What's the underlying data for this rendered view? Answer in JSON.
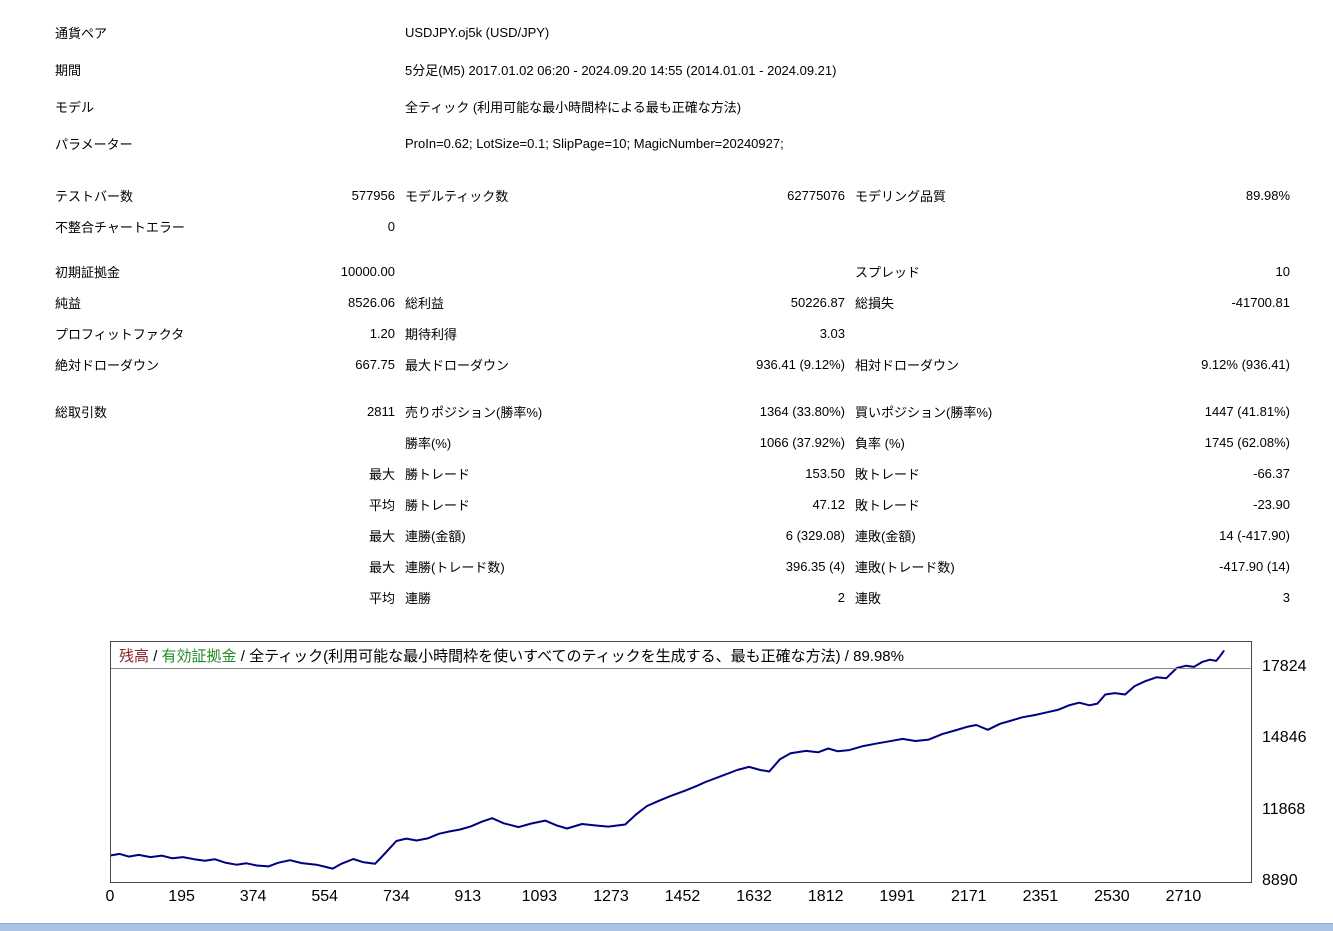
{
  "page": {
    "bottom_bar_color": "#aac2e4"
  },
  "header": {
    "rows": [
      {
        "label": "通貨ペア",
        "value": "USDJPY.oj5k (USD/JPY)"
      },
      {
        "label": "期間",
        "value": "5分足(M5) 2017.01.02 06:20 - 2024.09.20 14:55 (2014.01.01 - 2024.09.21)"
      },
      {
        "label": "モデル",
        "value": "全ティック (利用可能な最小時間枠による最も正確な方法)"
      },
      {
        "label": "パラメーター",
        "value": "ProIn=0.62; LotSize=0.1; SlipPage=10; MagicNumber=20240927;"
      }
    ]
  },
  "stats": {
    "groups": [
      [
        [
          [
            "テストバー数",
            "577956"
          ],
          [
            "モデルティック数",
            "62775076"
          ],
          [
            "モデリング品質",
            "89.98%"
          ]
        ],
        [
          [
            "不整合チャートエラー",
            "0"
          ],
          [
            "",
            ""
          ],
          [
            "",
            ""
          ]
        ]
      ],
      [
        [
          [
            "初期証拠金",
            "10000.00"
          ],
          [
            "",
            ""
          ],
          [
            "スプレッド",
            "10"
          ]
        ],
        [
          [
            "純益",
            "8526.06"
          ],
          [
            "総利益",
            "50226.87"
          ],
          [
            "総損失",
            "-41700.81"
          ]
        ],
        [
          [
            "プロフィットファクタ",
            "1.20"
          ],
          [
            "期待利得",
            "3.03"
          ],
          [
            "",
            ""
          ]
        ],
        [
          [
            "絶対ドローダウン",
            "667.75"
          ],
          [
            "最大ドローダウン",
            "936.41 (9.12%)"
          ],
          [
            "相対ドローダウン",
            "9.12% (936.41)"
          ]
        ]
      ],
      [
        [
          [
            "総取引数",
            "2811"
          ],
          [
            "売りポジション(勝率%)",
            "1364 (33.80%)"
          ],
          [
            "買いポジション(勝率%)",
            "1447 (41.81%)"
          ]
        ],
        [
          [
            "",
            ""
          ],
          [
            "勝率(%)",
            "1066 (37.92%)"
          ],
          [
            "負率 (%)",
            "1745 (62.08%)"
          ]
        ],
        [
          [
            "",
            "最大"
          ],
          [
            "勝トレード",
            "153.50"
          ],
          [
            "敗トレード",
            "-66.37"
          ]
        ],
        [
          [
            "",
            "平均"
          ],
          [
            "勝トレード",
            "47.12"
          ],
          [
            "敗トレード",
            "-23.90"
          ]
        ],
        [
          [
            "",
            "最大"
          ],
          [
            "連勝(金額)",
            "6 (329.08)"
          ],
          [
            "連敗(金額)",
            "14 (-417.90)"
          ]
        ],
        [
          [
            "",
            "最大"
          ],
          [
            "連勝(トレード数)",
            "396.35 (4)"
          ],
          [
            "連敗(トレード数)",
            "-417.90 (14)"
          ]
        ],
        [
          [
            "",
            "平均"
          ],
          [
            "連勝",
            "2"
          ],
          [
            "連敗",
            "3"
          ]
        ]
      ]
    ]
  },
  "chart": {
    "legend": {
      "balance": "残高",
      "separator": "/",
      "equity": "有効証拠金",
      "description": "全ティック(利用可能な最小時間枠を使いすべてのティックを生成する、最も正確な方法) / 89.98%"
    },
    "colors": {
      "balance_text": "#8b2323",
      "equity_text": "#228b22",
      "line": "#000080",
      "divider": "#8a8a8a"
    }
  },
  "chart_data": {
    "type": "line",
    "title": "残高 / 有効証拠金 / 全ティック(利用可能な最小時間枠を使いすべてのティックを生成する、最も正確な方法) / 89.98%",
    "xlabel": "",
    "ylabel": "",
    "xticks": [
      0,
      195,
      374,
      554,
      734,
      913,
      1093,
      1273,
      1452,
      1632,
      1812,
      1991,
      2171,
      2351,
      2530,
      2710
    ],
    "yticks": [
      8890,
      11868,
      14846,
      17824
    ],
    "xlim": [
      0,
      2880
    ],
    "ylim": [
      8890,
      18900
    ],
    "grid": false,
    "legend_position": "top-left-inside",
    "series": [
      {
        "name": "残高",
        "color": "#000080",
        "points": [
          [
            0,
            10000
          ],
          [
            22,
            10060
          ],
          [
            45,
            9950
          ],
          [
            70,
            10020
          ],
          [
            100,
            9930
          ],
          [
            128,
            9990
          ],
          [
            155,
            9880
          ],
          [
            182,
            9930
          ],
          [
            210,
            9840
          ],
          [
            237,
            9780
          ],
          [
            262,
            9840
          ],
          [
            288,
            9700
          ],
          [
            317,
            9610
          ],
          [
            342,
            9670
          ],
          [
            368,
            9580
          ],
          [
            398,
            9540
          ],
          [
            422,
            9690
          ],
          [
            452,
            9800
          ],
          [
            482,
            9680
          ],
          [
            519,
            9610
          ],
          [
            542,
            9520
          ],
          [
            560,
            9450
          ],
          [
            582,
            9650
          ],
          [
            612,
            9850
          ],
          [
            636,
            9720
          ],
          [
            667,
            9650
          ],
          [
            692,
            10080
          ],
          [
            721,
            10600
          ],
          [
            746,
            10700
          ],
          [
            772,
            10620
          ],
          [
            800,
            10710
          ],
          [
            828,
            10900
          ],
          [
            856,
            11000
          ],
          [
            882,
            11080
          ],
          [
            909,
            11210
          ],
          [
            936,
            11400
          ],
          [
            963,
            11550
          ],
          [
            992,
            11340
          ],
          [
            1030,
            11180
          ],
          [
            1062,
            11330
          ],
          [
            1097,
            11450
          ],
          [
            1126,
            11250
          ],
          [
            1152,
            11120
          ],
          [
            1190,
            11310
          ],
          [
            1222,
            11250
          ],
          [
            1256,
            11200
          ],
          [
            1299,
            11290
          ],
          [
            1326,
            11700
          ],
          [
            1354,
            12060
          ],
          [
            1382,
            12260
          ],
          [
            1410,
            12450
          ],
          [
            1450,
            12700
          ],
          [
            1480,
            12900
          ],
          [
            1502,
            13060
          ],
          [
            1540,
            13300
          ],
          [
            1582,
            13560
          ],
          [
            1612,
            13690
          ],
          [
            1640,
            13560
          ],
          [
            1663,
            13500
          ],
          [
            1690,
            14010
          ],
          [
            1717,
            14260
          ],
          [
            1756,
            14360
          ],
          [
            1786,
            14300
          ],
          [
            1812,
            14460
          ],
          [
            1836,
            14340
          ],
          [
            1865,
            14390
          ],
          [
            1900,
            14560
          ],
          [
            1932,
            14660
          ],
          [
            1966,
            14760
          ],
          [
            2000,
            14860
          ],
          [
            2032,
            14770
          ],
          [
            2066,
            14830
          ],
          [
            2100,
            15060
          ],
          [
            2132,
            15210
          ],
          [
            2162,
            15360
          ],
          [
            2186,
            15440
          ],
          [
            2215,
            15240
          ],
          [
            2246,
            15490
          ],
          [
            2272,
            15610
          ],
          [
            2302,
            15760
          ],
          [
            2336,
            15860
          ],
          [
            2366,
            15970
          ],
          [
            2392,
            16070
          ],
          [
            2422,
            16270
          ],
          [
            2446,
            16370
          ],
          [
            2472,
            16260
          ],
          [
            2492,
            16330
          ],
          [
            2512,
            16710
          ],
          [
            2536,
            16770
          ],
          [
            2562,
            16710
          ],
          [
            2586,
            17060
          ],
          [
            2612,
            17260
          ],
          [
            2642,
            17430
          ],
          [
            2666,
            17390
          ],
          [
            2692,
            17810
          ],
          [
            2716,
            17910
          ],
          [
            2736,
            17860
          ],
          [
            2756,
            18060
          ],
          [
            2776,
            18160
          ],
          [
            2792,
            18110
          ],
          [
            2802,
            18310
          ],
          [
            2811,
            18520
          ]
        ]
      }
    ]
  }
}
